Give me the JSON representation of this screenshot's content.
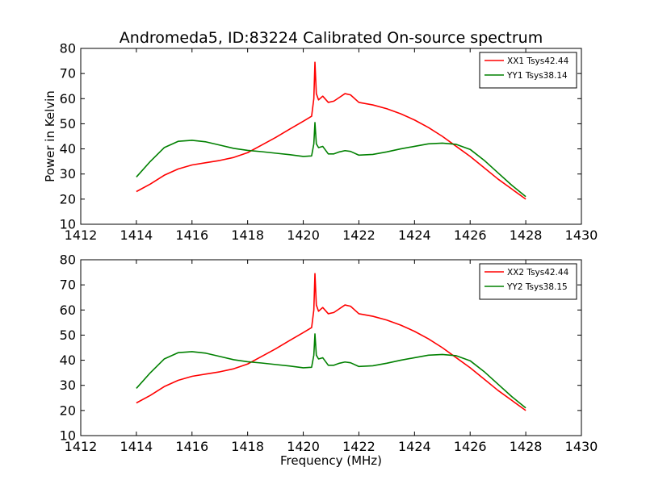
{
  "chart_data": {
    "type": "line",
    "title": "Andromeda5, ID:83224 Calibrated On-source spectrum",
    "xlabel": "Frequency (MHz)",
    "panels": [
      {
        "ylabel": "Power in Kelvin",
        "xlim": [
          1412,
          1430
        ],
        "ylim": [
          10,
          80
        ],
        "x_ticks": [
          1412,
          1414,
          1416,
          1418,
          1420,
          1422,
          1424,
          1426,
          1428,
          1430
        ],
        "y_ticks": [
          10,
          20,
          30,
          40,
          50,
          60,
          70,
          80
        ],
        "legend_position": "top-right",
        "series": [
          {
            "name": "XX1 Tsys42.44",
            "color": "#ff0000",
            "points": [
              [
                1414.0,
                23.0
              ],
              [
                1414.5,
                26.0
              ],
              [
                1415.0,
                29.5
              ],
              [
                1415.5,
                32.0
              ],
              [
                1416.0,
                33.6
              ],
              [
                1416.5,
                34.5
              ],
              [
                1417.0,
                35.4
              ],
              [
                1417.5,
                36.6
              ],
              [
                1418.0,
                38.5
              ],
              [
                1418.5,
                41.5
              ],
              [
                1419.0,
                44.5
              ],
              [
                1419.5,
                47.8
              ],
              [
                1420.0,
                51.0
              ],
              [
                1420.3,
                53.0
              ],
              [
                1420.38,
                60.0
              ],
              [
                1420.42,
                74.5
              ],
              [
                1420.47,
                62.0
              ],
              [
                1420.55,
                59.5
              ],
              [
                1420.7,
                61.0
              ],
              [
                1420.9,
                58.5
              ],
              [
                1421.1,
                59.0
              ],
              [
                1421.3,
                60.5
              ],
              [
                1421.5,
                62.0
              ],
              [
                1421.7,
                61.5
              ],
              [
                1422.0,
                58.5
              ],
              [
                1422.5,
                57.5
              ],
              [
                1423.0,
                56.0
              ],
              [
                1423.5,
                54.0
              ],
              [
                1424.0,
                51.5
              ],
              [
                1424.5,
                48.5
              ],
              [
                1425.0,
                45.0
              ],
              [
                1425.5,
                41.0
              ],
              [
                1426.0,
                37.0
              ],
              [
                1426.5,
                32.5
              ],
              [
                1427.0,
                28.0
              ],
              [
                1427.5,
                24.0
              ],
              [
                1428.0,
                20.0
              ]
            ]
          },
          {
            "name": "YY1 Tsys38.14",
            "color": "#008000",
            "points": [
              [
                1414.0,
                28.8
              ],
              [
                1414.5,
                35.0
              ],
              [
                1415.0,
                40.5
              ],
              [
                1415.5,
                43.0
              ],
              [
                1416.0,
                43.4
              ],
              [
                1416.5,
                42.8
              ],
              [
                1417.0,
                41.5
              ],
              [
                1417.5,
                40.2
              ],
              [
                1418.0,
                39.4
              ],
              [
                1418.5,
                38.9
              ],
              [
                1419.0,
                38.3
              ],
              [
                1419.5,
                37.7
              ],
              [
                1420.0,
                37.0
              ],
              [
                1420.3,
                37.2
              ],
              [
                1420.38,
                42.0
              ],
              [
                1420.42,
                50.5
              ],
              [
                1420.47,
                42.0
              ],
              [
                1420.55,
                40.5
              ],
              [
                1420.7,
                41.0
              ],
              [
                1420.9,
                38.0
              ],
              [
                1421.1,
                38.0
              ],
              [
                1421.3,
                38.8
              ],
              [
                1421.5,
                39.3
              ],
              [
                1421.7,
                39.0
              ],
              [
                1422.0,
                37.5
              ],
              [
                1422.5,
                37.8
              ],
              [
                1423.0,
                38.8
              ],
              [
                1423.5,
                40.0
              ],
              [
                1424.0,
                41.0
              ],
              [
                1424.5,
                42.0
              ],
              [
                1425.0,
                42.3
              ],
              [
                1425.5,
                41.8
              ],
              [
                1426.0,
                39.8
              ],
              [
                1426.5,
                35.5
              ],
              [
                1427.0,
                30.5
              ],
              [
                1427.5,
                25.5
              ],
              [
                1428.0,
                21.0
              ]
            ]
          }
        ]
      },
      {
        "ylabel": "",
        "xlim": [
          1412,
          1430
        ],
        "ylim": [
          10,
          80
        ],
        "x_ticks": [
          1412,
          1414,
          1416,
          1418,
          1420,
          1422,
          1424,
          1426,
          1428,
          1430
        ],
        "y_ticks": [
          10,
          20,
          30,
          40,
          50,
          60,
          70,
          80
        ],
        "legend_position": "top-right",
        "series": [
          {
            "name": "XX2 Tsys42.44",
            "color": "#ff0000",
            "points": [
              [
                1414.0,
                23.0
              ],
              [
                1414.5,
                26.0
              ],
              [
                1415.0,
                29.5
              ],
              [
                1415.5,
                32.0
              ],
              [
                1416.0,
                33.6
              ],
              [
                1416.5,
                34.5
              ],
              [
                1417.0,
                35.4
              ],
              [
                1417.5,
                36.6
              ],
              [
                1418.0,
                38.5
              ],
              [
                1418.5,
                41.5
              ],
              [
                1419.0,
                44.5
              ],
              [
                1419.5,
                47.8
              ],
              [
                1420.0,
                51.0
              ],
              [
                1420.3,
                53.0
              ],
              [
                1420.38,
                60.0
              ],
              [
                1420.42,
                74.5
              ],
              [
                1420.47,
                62.0
              ],
              [
                1420.55,
                59.5
              ],
              [
                1420.7,
                61.0
              ],
              [
                1420.9,
                58.5
              ],
              [
                1421.1,
                59.0
              ],
              [
                1421.3,
                60.5
              ],
              [
                1421.5,
                62.0
              ],
              [
                1421.7,
                61.5
              ],
              [
                1422.0,
                58.5
              ],
              [
                1422.5,
                57.5
              ],
              [
                1423.0,
                56.0
              ],
              [
                1423.5,
                54.0
              ],
              [
                1424.0,
                51.5
              ],
              [
                1424.5,
                48.5
              ],
              [
                1425.0,
                45.0
              ],
              [
                1425.5,
                41.0
              ],
              [
                1426.0,
                37.0
              ],
              [
                1426.5,
                32.5
              ],
              [
                1427.0,
                28.0
              ],
              [
                1427.5,
                24.0
              ],
              [
                1428.0,
                20.0
              ]
            ]
          },
          {
            "name": "YY2 Tsys38.15",
            "color": "#008000",
            "points": [
              [
                1414.0,
                28.8
              ],
              [
                1414.5,
                35.0
              ],
              [
                1415.0,
                40.5
              ],
              [
                1415.5,
                43.0
              ],
              [
                1416.0,
                43.4
              ],
              [
                1416.5,
                42.8
              ],
              [
                1417.0,
                41.5
              ],
              [
                1417.5,
                40.2
              ],
              [
                1418.0,
                39.4
              ],
              [
                1418.5,
                38.9
              ],
              [
                1419.0,
                38.3
              ],
              [
                1419.5,
                37.7
              ],
              [
                1420.0,
                37.0
              ],
              [
                1420.3,
                37.2
              ],
              [
                1420.38,
                42.0
              ],
              [
                1420.42,
                50.5
              ],
              [
                1420.47,
                42.0
              ],
              [
                1420.55,
                40.5
              ],
              [
                1420.7,
                41.0
              ],
              [
                1420.9,
                38.0
              ],
              [
                1421.1,
                38.0
              ],
              [
                1421.3,
                38.8
              ],
              [
                1421.5,
                39.3
              ],
              [
                1421.7,
                39.0
              ],
              [
                1422.0,
                37.5
              ],
              [
                1422.5,
                37.8
              ],
              [
                1423.0,
                38.8
              ],
              [
                1423.5,
                40.0
              ],
              [
                1424.0,
                41.0
              ],
              [
                1424.5,
                42.0
              ],
              [
                1425.0,
                42.3
              ],
              [
                1425.5,
                41.8
              ],
              [
                1426.0,
                39.8
              ],
              [
                1426.5,
                35.5
              ],
              [
                1427.0,
                30.5
              ],
              [
                1427.5,
                25.5
              ],
              [
                1428.0,
                21.0
              ]
            ]
          }
        ]
      }
    ]
  }
}
